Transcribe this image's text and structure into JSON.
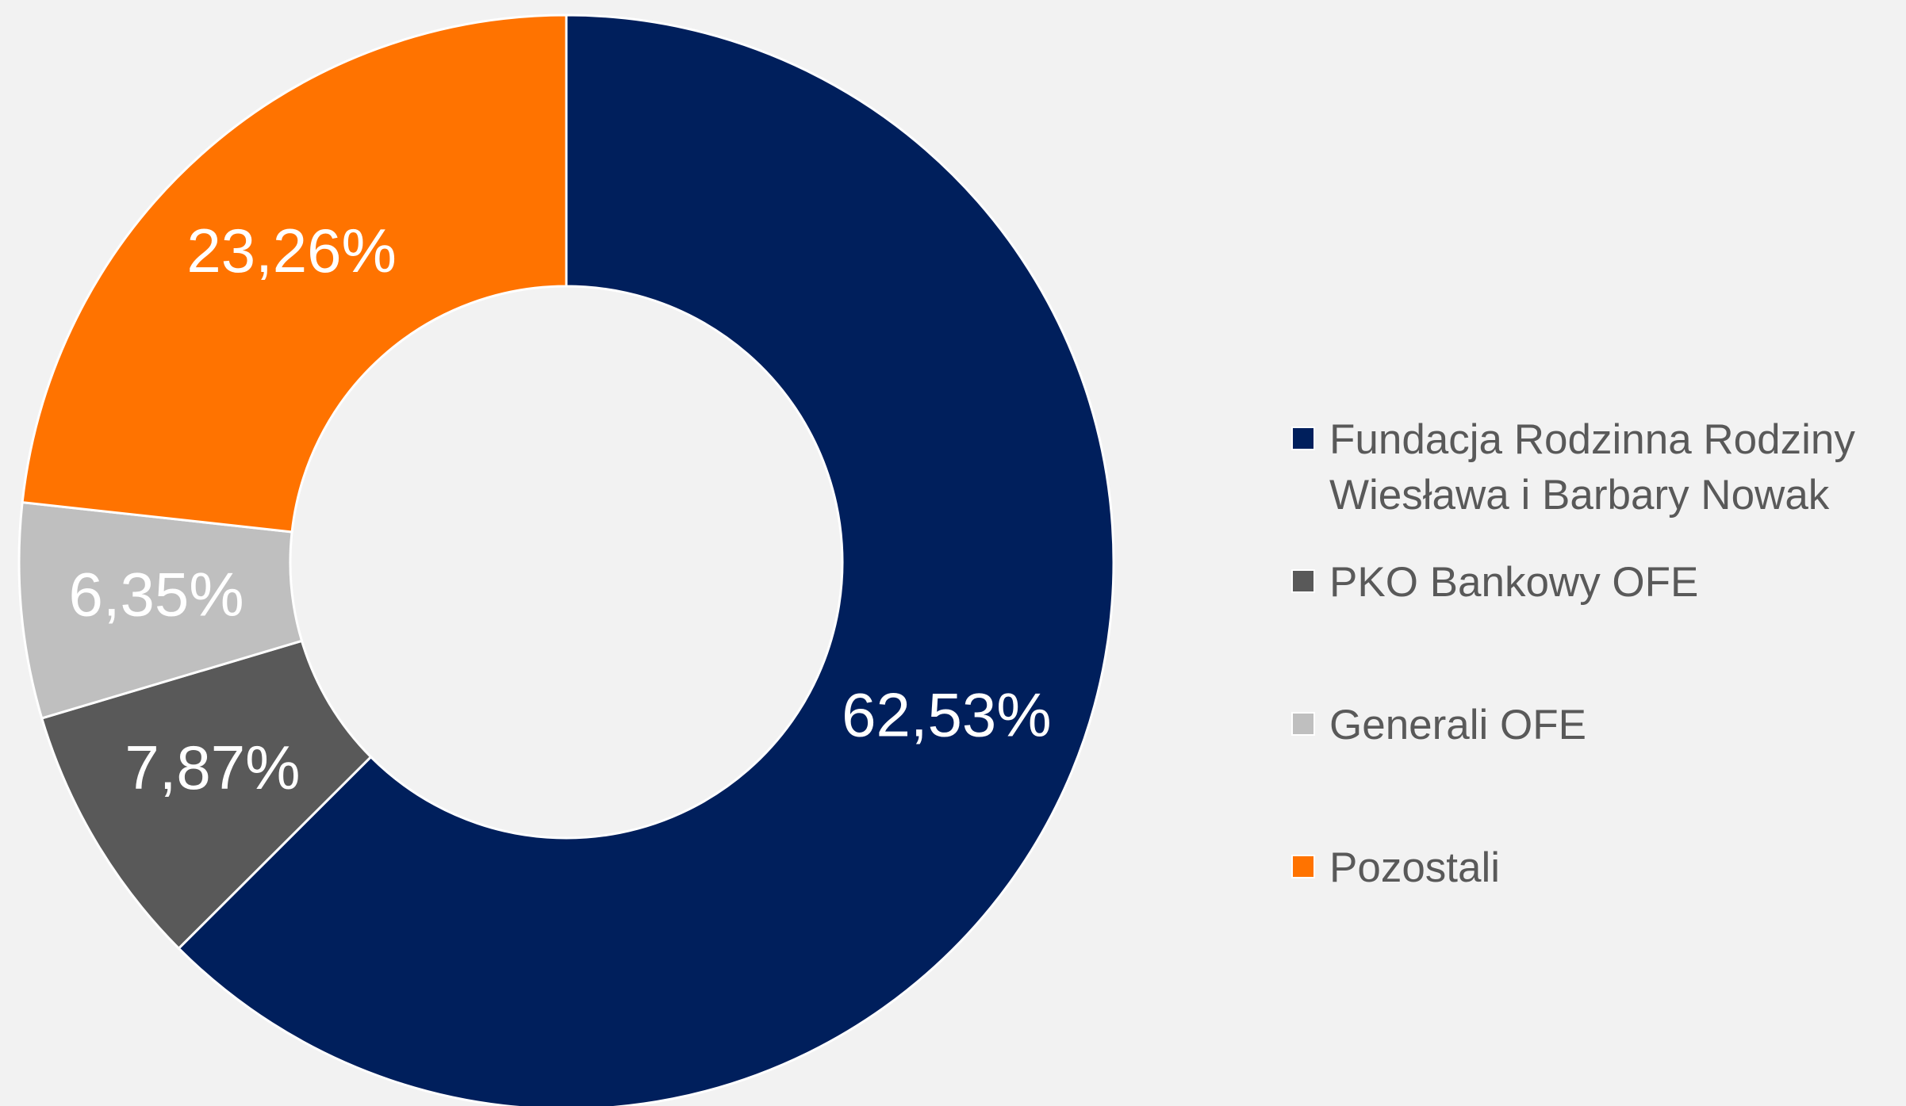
{
  "chart_data": {
    "type": "pie",
    "categories": [
      "Fundacja Rodzinna Rodziny Wiesława i Barbary Nowak",
      "PKO Bankowy OFE",
      "Generali OFE",
      "Pozostali"
    ],
    "values": [
      62.53,
      7.87,
      6.35,
      23.26
    ],
    "value_labels": [
      "62,53%",
      "7,87%",
      "6,35%",
      "23,26%"
    ],
    "colors": [
      "#001f5c",
      "#595959",
      "#bfbfbf",
      "#ff7300"
    ],
    "legend": "right"
  }
}
